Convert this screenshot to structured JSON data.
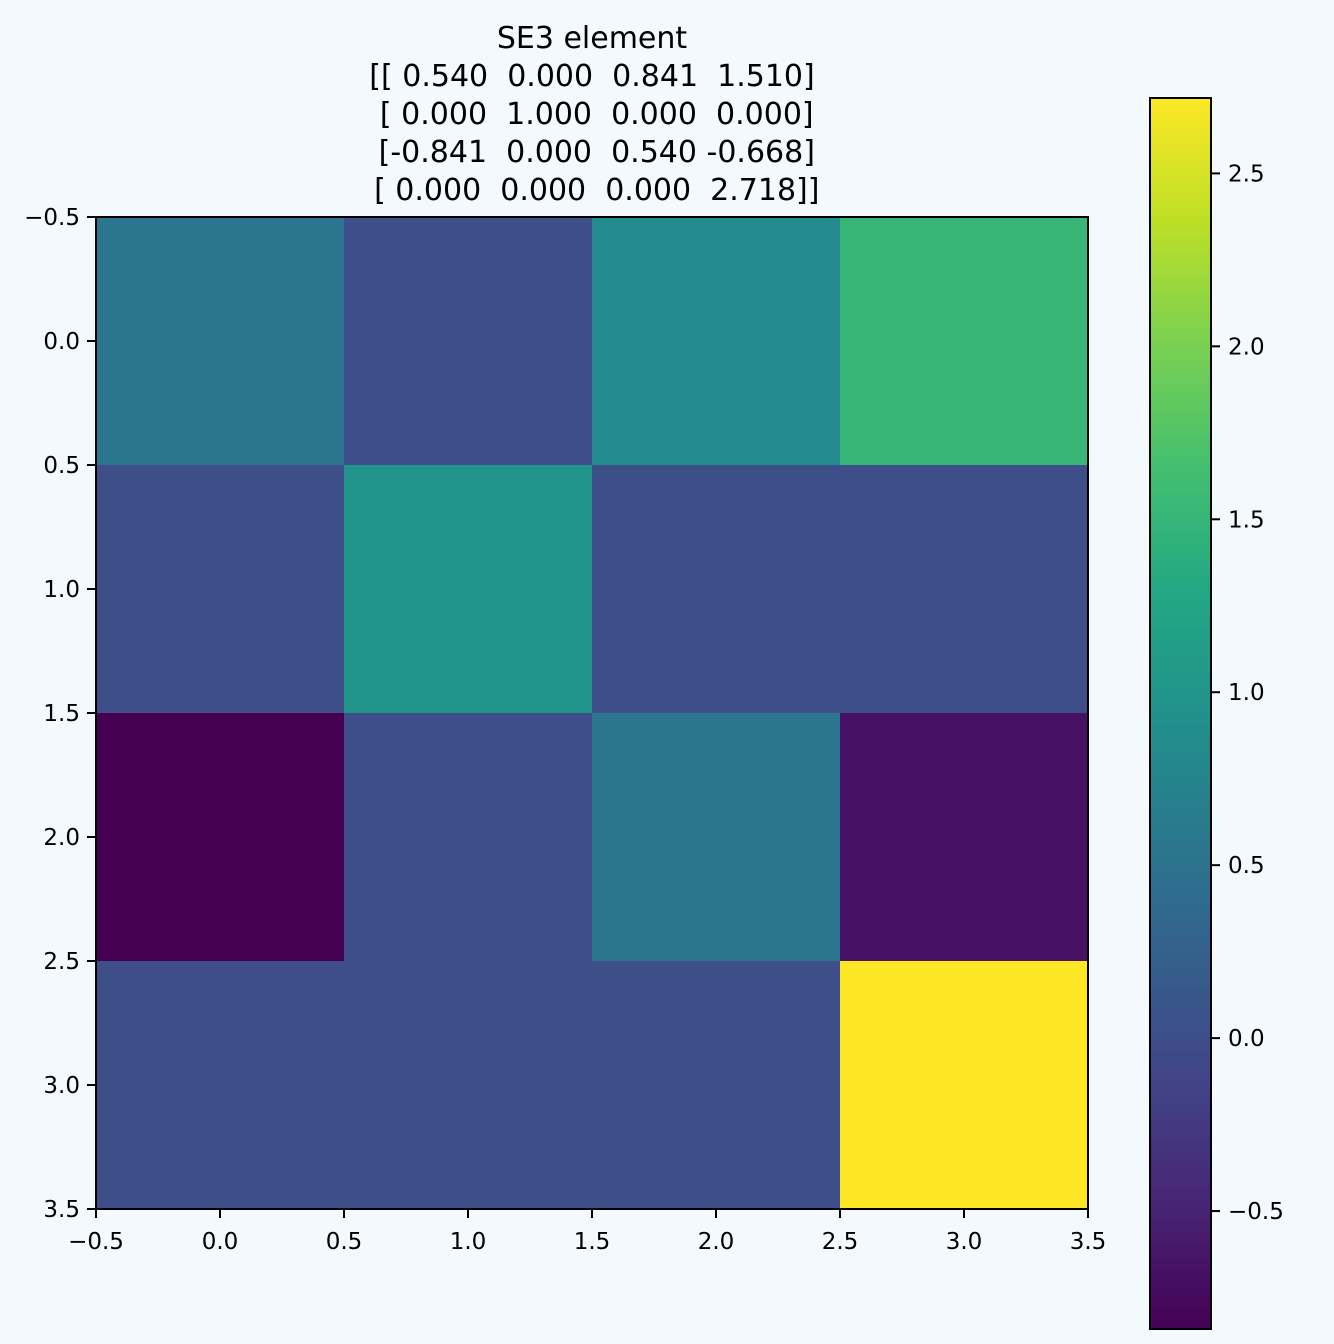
{
  "chart_data": {
    "type": "heatmap",
    "title_lines": [
      "SE3 element",
      "[[ 0.540  0.000  0.841  1.510]",
      " [ 0.000  1.000  0.000  0.000]",
      " [-0.841  0.000  0.540 -0.668]",
      " [ 0.000  0.000  0.000  2.718]]"
    ],
    "matrix": [
      [
        0.54,
        0.0,
        0.841,
        1.51
      ],
      [
        0.0,
        1.0,
        0.0,
        0.0
      ],
      [
        -0.841,
        0.0,
        0.54,
        -0.668
      ],
      [
        0.0,
        0.0,
        0.0,
        2.718
      ]
    ],
    "colormap": "viridis",
    "x_ticks": [
      -0.5,
      0.0,
      0.5,
      1.0,
      1.5,
      2.0,
      2.5,
      3.0,
      3.5
    ],
    "x_tick_labels": [
      "−0.5",
      "0.0",
      "0.5",
      "1.0",
      "1.5",
      "2.0",
      "2.5",
      "3.0",
      "3.5"
    ],
    "y_ticks": [
      -0.5,
      0.0,
      0.5,
      1.0,
      1.5,
      2.0,
      2.5,
      3.0,
      3.5
    ],
    "y_tick_labels": [
      "−0.5",
      "0.0",
      "0.5",
      "1.0",
      "1.5",
      "2.0",
      "2.5",
      "3.0",
      "3.5"
    ],
    "xlim": [
      -0.5,
      3.5
    ],
    "ylim": [
      3.5,
      -0.5
    ],
    "colorbar": {
      "range": [
        -0.841,
        2.718
      ],
      "ticks": [
        -0.5,
        0.0,
        0.5,
        1.0,
        1.5,
        2.0,
        2.5
      ],
      "tick_labels": [
        "−0.5",
        "0.0",
        "0.5",
        "1.0",
        "1.5",
        "2.0",
        "2.5"
      ]
    },
    "grid": false
  }
}
